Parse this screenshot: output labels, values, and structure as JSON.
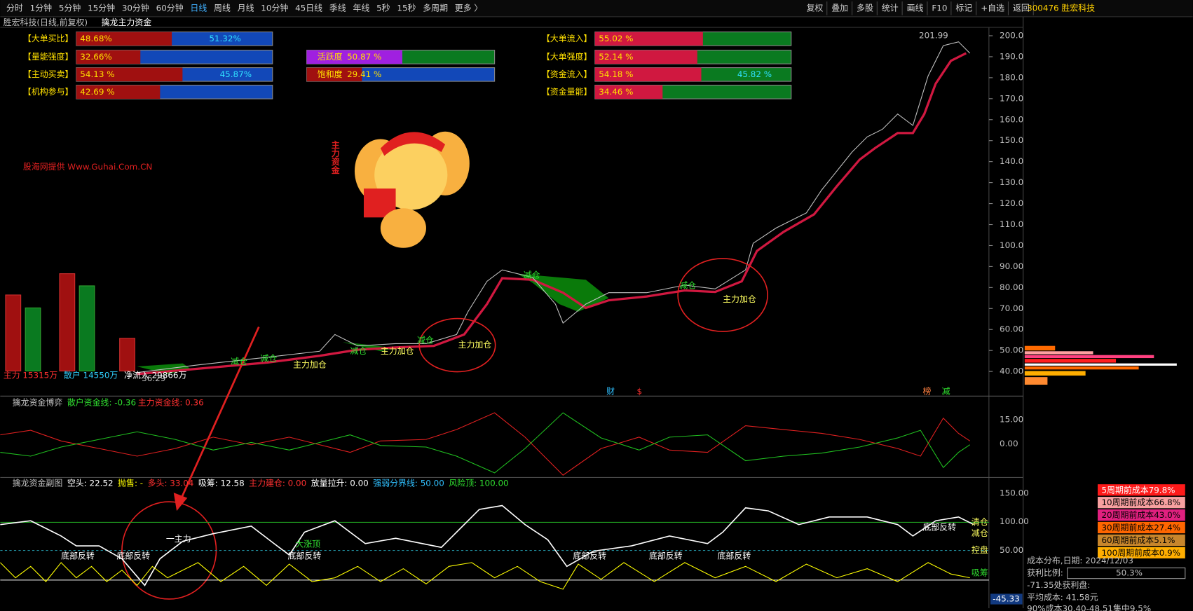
{
  "toolbar": {
    "left": [
      "分时",
      "1分钟",
      "5分钟",
      "15分钟",
      "30分钟",
      "60分钟",
      "日线",
      "周线",
      "月线",
      "10分钟",
      "45日线",
      "季线",
      "年线",
      "5秒",
      "15秒",
      "多周期",
      "更多 〉"
    ],
    "right": [
      "复权",
      "叠加",
      "多股",
      "统计",
      "画线",
      "F10",
      "标记",
      "+自选",
      "返回"
    ],
    "stock": "300476 胜宏科技"
  },
  "header": {
    "name": "胜宏科技(日线,前复权)",
    "indicator": "擒龙主力资金"
  },
  "gauges": [
    {
      "name": "【大单买比】",
      "value": 48.68,
      "label": "48.68%",
      "rest_label": "51.32%",
      "colors": [
        "#a01010",
        "#1248b8"
      ]
    },
    {
      "name": "【量能强度】",
      "value": 32.66,
      "label": "32.66%",
      "colors": [
        "#a01010",
        "#1248b8"
      ]
    },
    {
      "name": "【主动买卖】",
      "value": 54.13,
      "label": "54.13 %",
      "rest_label": "45.87%",
      "colors": [
        "#a01010",
        "#1248b8"
      ]
    },
    {
      "name": "【机构参与】",
      "value": 42.69,
      "label": "42.69 %",
      "colors": [
        "#a01010",
        "#1248b8"
      ]
    },
    {
      "name": "活跃度",
      "value": 50.87,
      "label": "50.87 %",
      "colors": [
        "#a020e0",
        "#0a7a20"
      ]
    },
    {
      "name": "饱和度",
      "value": 29.41,
      "label": "29.41 %",
      "colors": [
        "#a01010",
        "#1248b8"
      ]
    },
    {
      "name": "【大单流入】",
      "value": 55.02,
      "label": "55.02 %",
      "colors": [
        "#d01840",
        "#0a7a20"
      ]
    },
    {
      "name": "【大单强度】",
      "value": 52.14,
      "label": "52.14 %",
      "colors": [
        "#d01840",
        "#0a7a20"
      ]
    },
    {
      "name": "【资金流入】",
      "value": 54.18,
      "label": "54.18 %",
      "rest_label": "45.82 %",
      "colors": [
        "#d01840",
        "#0a7a20"
      ]
    },
    {
      "name": "【资金量能】",
      "value": 34.46,
      "label": "34.46 %",
      "colors": [
        "#d01840",
        "#0a7a20"
      ]
    }
  ],
  "watermark": "股海网提供 Www.Guhai.Com.CN",
  "logo_text": "主力资金",
  "price_axis": [
    "200.0",
    "190.0",
    "180.0",
    "170.0",
    "160.0",
    "150.0",
    "140.0",
    "130.0",
    "120.0",
    "110.0",
    "100.0",
    "90.00",
    "80.00",
    "70.00",
    "60.00",
    "50.00",
    "40.00"
  ],
  "high_label": "201.99",
  "low_label": "36.29",
  "flows": [
    {
      "label": "主力 15315万",
      "color": "#ff3030"
    },
    {
      "label": "散户 14550万",
      "color": "#30d0ff"
    },
    {
      "label": "净流入 29866万",
      "color": "#ffffff"
    }
  ],
  "annotations": [
    "主力加仓",
    "主力加仓",
    "主力加仓",
    "主力加仓",
    "减仓",
    "减仓",
    "减仓",
    "减仓",
    "减仓",
    "减仓"
  ],
  "markers": [
    "财",
    "$",
    "榜",
    "减"
  ],
  "panel2": {
    "title": "擒龙资金博弈",
    "retail": "散户资金线: -0.36",
    "main": "主力资金线: 0.36",
    "axis": [
      "15.00",
      "0.00"
    ]
  },
  "panel3": {
    "title": "擒龙资金副图",
    "items": [
      {
        "text": "空头: 22.52",
        "color": "#ffffff"
      },
      {
        "text": "抛售: -",
        "color": "#ffff00"
      },
      {
        "text": "多头: 33.04",
        "color": "#ff3030"
      },
      {
        "text": "吸筹: 12.58",
        "color": "#ffffff"
      },
      {
        "text": "主力建仓: 0.00",
        "color": "#ff3030"
      },
      {
        "text": "放量拉升: 0.00",
        "color": "#ffffff"
      },
      {
        "text": "强弱分界线: 50.00",
        "color": "#30c0ff"
      },
      {
        "text": "风险顶: 100.00",
        "color": "#30e030"
      }
    ],
    "axis": [
      "150.00",
      "100.00",
      "50.00"
    ],
    "bottom_value": "-45.33",
    "right_labels": [
      "清仓",
      "减仓",
      "控盘",
      "吸筹"
    ],
    "annotations": [
      "底部反转",
      "底部反转",
      "一主力",
      "大涨顶",
      "底部反转",
      "底部反转",
      "底部反转",
      "底部反转",
      "底部反转"
    ]
  },
  "cost": {
    "rows": [
      {
        "text": "5周期前成本79.8%",
        "bg": "#ff1a1a",
        "fg": "#ffffff"
      },
      {
        "text": "10周期前成本66.8%",
        "bg": "#f8a0a0",
        "fg": "#000000"
      },
      {
        "text": "20周期前成本43.0%",
        "bg": "#e0207f",
        "fg": "#000000"
      },
      {
        "text": "30周期前成本27.4%",
        "bg": "#ff6600",
        "fg": "#000000"
      },
      {
        "text": "60周期前成本5.1%",
        "bg": "#c8862c",
        "fg": "#000000"
      },
      {
        "text": "100周期前成本0.9%",
        "bg": "#ffae00",
        "fg": "#000000"
      }
    ],
    "date": "成本分布,日期:  2024/12/03",
    "profit_label": "获利比例:",
    "profit_value": "50.3%",
    "profit_line": "-71.35处获利盘:",
    "avg": "平均成本: 41.58元",
    "range": "90%成本30.40-48.51集中9.5%"
  }
}
